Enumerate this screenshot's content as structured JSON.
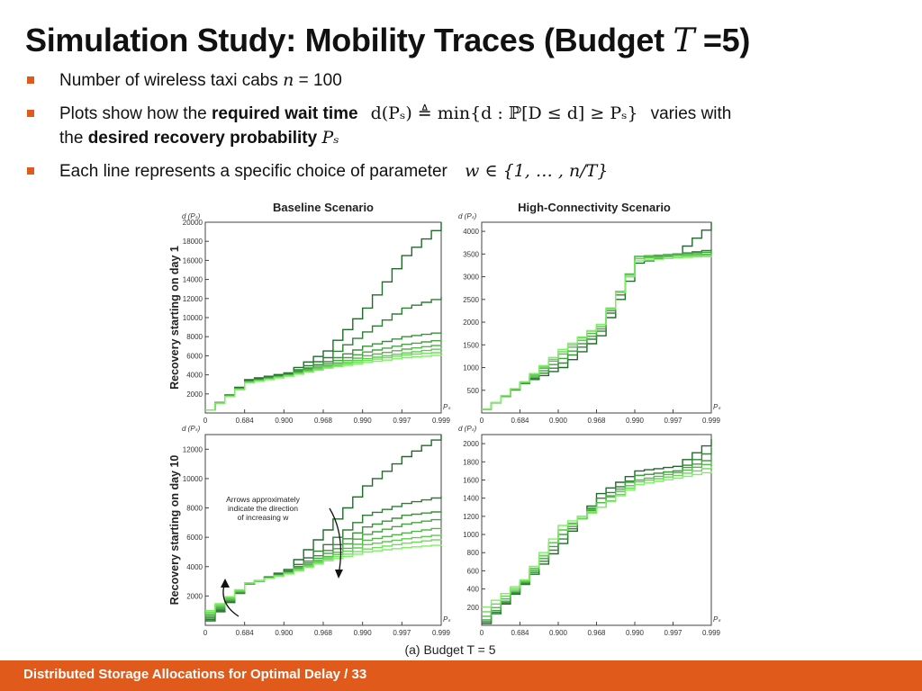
{
  "title": {
    "prefix": "Simulation Study: Mobility Traces (Budget ",
    "math": "T",
    "suffix": " =5)"
  },
  "bullets": {
    "b1": {
      "text": "Number of wireless taxi cabs ",
      "math": "n",
      "tail": " = 100"
    },
    "b2": {
      "pre": "Plots show how the ",
      "bold": "required wait time",
      "formula": "d(Pₛ) ≜ min{d : ℙ[D ≤ d] ≥ Pₛ}",
      "post": "varies with",
      "line2_pre": "the ",
      "line2_bold": "desired recovery probability",
      "line2_math": "Pₛ"
    },
    "b3": {
      "text": "Each line represents a specific choice of parameter ",
      "formula": "w ∈ {1, … , n/T}"
    }
  },
  "figure": {
    "caption": "(a) Budget T = 5",
    "col_titles": [
      "Baseline Scenario",
      "High-Connectivity Scenario"
    ],
    "row_labels": [
      "Recovery starting on day 1",
      "Recovery starting on day 10"
    ],
    "annotation": [
      "Arrows approximately",
      "indicate the direction",
      "of increasing w"
    ],
    "x_ticks": [
      "0",
      "0.684",
      "0.900",
      "0.968",
      "0.990",
      "0.997",
      "0.999"
    ],
    "x_label": "Pₛ",
    "y_label": "d (Pₛ)"
  },
  "chart_data": [
    {
      "type": "line",
      "title": "Baseline Scenario",
      "ylabel": "Recovery starting on day 1",
      "ylim": [
        0,
        20000
      ],
      "yticks": [
        2000,
        4000,
        6000,
        8000,
        10000,
        12000,
        14000,
        16000,
        18000,
        20000
      ],
      "categories": [
        "0",
        "0.684",
        "0.900",
        "0.968",
        "0.990",
        "0.997",
        "0.999"
      ],
      "series": [
        {
          "values": [
            300,
            3500,
            4200,
            6500,
            11000,
            16500,
            20000
          ]
        },
        {
          "values": [
            300,
            3400,
            4100,
            5800,
            8500,
            11000,
            12200
          ]
        },
        {
          "values": [
            300,
            3300,
            4050,
            5400,
            7000,
            8000,
            8500
          ]
        },
        {
          "values": [
            300,
            3300,
            4000,
            5200,
            6400,
            7200,
            7700
          ]
        },
        {
          "values": [
            300,
            3250,
            3950,
            5000,
            6000,
            6700,
            7200
          ]
        },
        {
          "values": [
            300,
            3200,
            3900,
            4900,
            5700,
            6300,
            6800
          ]
        },
        {
          "values": [
            300,
            3200,
            3900,
            4800,
            5500,
            6100,
            6400
          ]
        },
        {
          "values": [
            300,
            3150,
            3850,
            4700,
            5300,
            5800,
            6100
          ]
        }
      ]
    },
    {
      "type": "line",
      "title": "High-Connectivity Scenario",
      "ylim": [
        0,
        4200
      ],
      "yticks": [
        500,
        1000,
        1500,
        2000,
        2500,
        3000,
        3500,
        4000
      ],
      "categories": [
        "0",
        "0.684",
        "0.900",
        "0.968",
        "0.990",
        "0.997",
        "0.999"
      ],
      "series": [
        {
          "values": [
            80,
            650,
            1000,
            1700,
            3300,
            3500,
            4200
          ]
        },
        {
          "values": [
            80,
            650,
            1100,
            1800,
            3400,
            3500,
            3600
          ]
        },
        {
          "values": [
            80,
            660,
            1200,
            1850,
            3450,
            3500,
            3550
          ]
        },
        {
          "values": [
            80,
            670,
            1300,
            1900,
            3450,
            3480,
            3500
          ]
        },
        {
          "values": [
            80,
            680,
            1350,
            1950,
            3400,
            3450,
            3480
          ]
        },
        {
          "values": [
            80,
            690,
            1400,
            1950,
            3350,
            3420,
            3450
          ]
        }
      ]
    },
    {
      "type": "line",
      "ylabel": "Recovery starting on day 10",
      "ylim": [
        0,
        13000
      ],
      "yticks": [
        2000,
        4000,
        6000,
        8000,
        10000,
        12000
      ],
      "categories": [
        "0",
        "0.684",
        "0.900",
        "0.968",
        "0.990",
        "0.997",
        "0.999"
      ],
      "series": [
        {
          "values": [
            300,
            2800,
            3800,
            6500,
            9500,
            11500,
            13000
          ]
        },
        {
          "values": [
            400,
            2800,
            3700,
            5500,
            7500,
            8300,
            8800
          ]
        },
        {
          "values": [
            500,
            2800,
            3650,
            5100,
            6700,
            7500,
            7800
          ]
        },
        {
          "values": [
            600,
            2800,
            3600,
            4900,
            6200,
            6900,
            7300
          ]
        },
        {
          "values": [
            700,
            2850,
            3600,
            4700,
            5800,
            6300,
            6700
          ]
        },
        {
          "values": [
            800,
            2850,
            3550,
            4600,
            5500,
            5900,
            6200
          ]
        },
        {
          "values": [
            900,
            2900,
            3550,
            4500,
            5200,
            5600,
            5900
          ]
        },
        {
          "values": [
            1000,
            2900,
            3500,
            4400,
            5000,
            5300,
            5500
          ]
        }
      ]
    },
    {
      "type": "line",
      "ylim": [
        0,
        2100
      ],
      "yticks": [
        200,
        400,
        600,
        800,
        1000,
        1200,
        1400,
        1600,
        1800,
        2000
      ],
      "categories": [
        "0",
        "0.684",
        "0.900",
        "0.968",
        "0.990",
        "0.997",
        "0.999"
      ],
      "series": [
        {
          "values": [
            20,
            450,
            900,
            1450,
            1700,
            1750,
            2050
          ]
        },
        {
          "values": [
            40,
            460,
            950,
            1400,
            1650,
            1700,
            1950
          ]
        },
        {
          "values": [
            60,
            470,
            1000,
            1350,
            1650,
            1700,
            1850
          ]
        },
        {
          "values": [
            100,
            480,
            1050,
            1350,
            1600,
            1680,
            1800
          ]
        },
        {
          "values": [
            150,
            490,
            1050,
            1300,
            1580,
            1650,
            1750
          ]
        },
        {
          "values": [
            200,
            500,
            1100,
            1300,
            1550,
            1620,
            1700
          ]
        }
      ]
    }
  ],
  "colors": {
    "accent": "#e05a1b",
    "dark_green": "#1f6b2a",
    "light_green": "#7cf062"
  },
  "footer": {
    "text": "Distributed Storage Allocations for Optimal Delay / 33"
  }
}
